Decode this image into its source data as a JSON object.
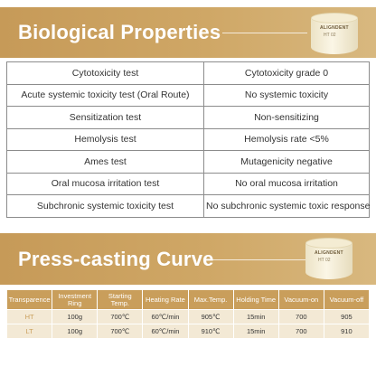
{
  "bio": {
    "title": "Biological Properties",
    "rows": [
      {
        "test": "Cytotoxicity test",
        "result": "Cytotoxicity grade 0"
      },
      {
        "test": "Acute systemic toxicity test (Oral Route)",
        "result": "No systemic toxicity"
      },
      {
        "test": "Sensitization test",
        "result": "Non-sensitizing"
      },
      {
        "test": "Hemolysis test",
        "result": "Hemolysis rate <5%"
      },
      {
        "test": "Ames test",
        "result": "Mutagenicity negative"
      },
      {
        "test": "Oral mucosa irritation test",
        "result": "No oral mucosa irritation"
      },
      {
        "test": "Subchronic systemic toxicity test",
        "result": "No subchronic systemic toxic response"
      }
    ]
  },
  "press": {
    "title": "Press-casting Curve",
    "headers": [
      "Transparence",
      "Investment Ring",
      "Starting Temp.",
      "Heating Rate",
      "Max.Temp.",
      "Holding Time",
      "Vacuum-on",
      "Vacuum-off"
    ],
    "rows": [
      [
        "HT",
        "100g",
        "700℃",
        "60℃/min",
        "905℃",
        "15min",
        "700",
        "905"
      ],
      [
        "LT",
        "100g",
        "700℃",
        "60℃/min",
        "910℃",
        "15min",
        "700",
        "910"
      ]
    ]
  },
  "product": {
    "brand": "ALIGNDENT",
    "code": "HT 02"
  },
  "colors": {
    "accent": "#c99e5b",
    "row_fill": "#f3e9d5"
  }
}
